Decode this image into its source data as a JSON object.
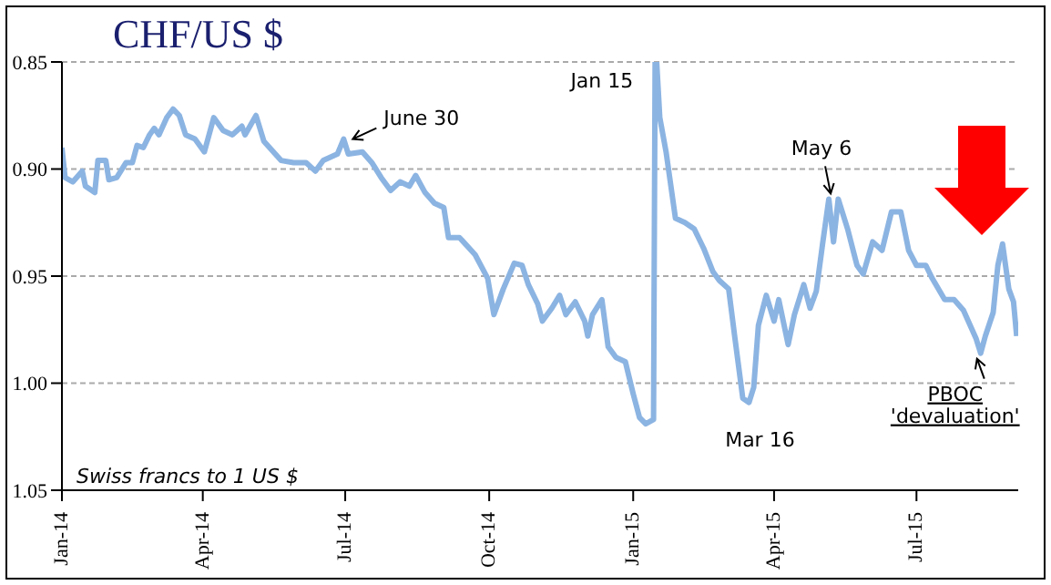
{
  "chart_data": {
    "type": "line",
    "title": "CHF/US $",
    "annotations": [
      "Swiss francs to 1 US $",
      {
        "text": "June 30",
        "x": "2014-06-30",
        "y": 0.886
      },
      {
        "text": "Jan 15",
        "x": "2015-01-15",
        "y": 0.85
      },
      {
        "text": "May 6",
        "x": "2015-05-06",
        "y": 0.914
      },
      {
        "text": "Mar 16",
        "x": "2015-03-16",
        "y": 1.009
      },
      {
        "text": "PBOC 'devaluation'",
        "x": "2015-08-11",
        "y": 0.986
      }
    ],
    "x": [
      "2014-01-01",
      "2014-01-03",
      "2014-01-08",
      "2014-01-14",
      "2014-01-16",
      "2014-01-22",
      "2014-01-24",
      "2014-01-29",
      "2014-01-31",
      "2014-02-05",
      "2014-02-11",
      "2014-02-15",
      "2014-02-18",
      "2014-02-22",
      "2014-02-26",
      "2014-03-01",
      "2014-03-04",
      "2014-03-09",
      "2014-03-13",
      "2014-03-17",
      "2014-03-21",
      "2014-03-27",
      "2014-04-02",
      "2014-04-08",
      "2014-04-14",
      "2014-04-20",
      "2014-04-26",
      "2014-04-28",
      "2014-05-05",
      "2014-05-10",
      "2014-05-21",
      "2014-05-29",
      "2014-06-06",
      "2014-06-12",
      "2014-06-17",
      "2014-06-26",
      "2014-06-30",
      "2014-07-03",
      "2014-07-12",
      "2014-07-18",
      "2014-07-24",
      "2014-07-30",
      "2014-08-05",
      "2014-08-11",
      "2014-08-15",
      "2014-08-21",
      "2014-08-27",
      "2014-09-02",
      "2014-09-05",
      "2014-09-12",
      "2014-09-22",
      "2014-09-30",
      "2014-10-04",
      "2014-10-10",
      "2014-10-17",
      "2014-10-22",
      "2014-10-26",
      "2014-11-01",
      "2014-11-04",
      "2014-11-10",
      "2014-11-15",
      "2014-11-19",
      "2014-11-25",
      "2014-12-01",
      "2014-12-03",
      "2014-12-06",
      "2014-12-12",
      "2014-12-16",
      "2014-12-21",
      "2014-12-27",
      "2015-01-01",
      "2015-01-05",
      "2015-01-09",
      "2015-01-14",
      "2015-01-15",
      "2015-01-16",
      "2015-01-18",
      "2015-01-22",
      "2015-01-28",
      "2015-02-03",
      "2015-02-09",
      "2015-02-15",
      "2015-02-21",
      "2015-02-25",
      "2015-03-03",
      "2015-03-07",
      "2015-03-12",
      "2015-03-16",
      "2015-03-19",
      "2015-03-22",
      "2015-03-27",
      "2015-04-01",
      "2015-04-04",
      "2015-04-10",
      "2015-04-14",
      "2015-04-20",
      "2015-04-24",
      "2015-04-28",
      "2015-05-02",
      "2015-05-06",
      "2015-05-09",
      "2015-05-12",
      "2015-05-18",
      "2015-05-24",
      "2015-05-28",
      "2015-06-03",
      "2015-06-09",
      "2015-06-15",
      "2015-06-21",
      "2015-06-26",
      "2015-07-01",
      "2015-07-07",
      "2015-07-11",
      "2015-07-19",
      "2015-07-25",
      "2015-07-31",
      "2015-08-08",
      "2015-08-11",
      "2015-08-14",
      "2015-08-19",
      "2015-08-22",
      "2015-08-25",
      "2015-08-29",
      "2015-09-01",
      "2015-09-03"
    ],
    "series": [
      {
        "color": "#8cb4e2",
        "values": [
          0.89,
          0.904,
          0.906,
          0.901,
          0.908,
          0.911,
          0.896,
          0.896,
          0.905,
          0.904,
          0.897,
          0.897,
          0.889,
          0.89,
          0.884,
          0.881,
          0.884,
          0.876,
          0.872,
          0.875,
          0.884,
          0.886,
          0.892,
          0.876,
          0.882,
          0.884,
          0.88,
          0.884,
          0.875,
          0.887,
          0.896,
          0.897,
          0.897,
          0.901,
          0.896,
          0.893,
          0.886,
          0.893,
          0.892,
          0.897,
          0.904,
          0.91,
          0.906,
          0.908,
          0.903,
          0.911,
          0.916,
          0.918,
          0.932,
          0.932,
          0.94,
          0.951,
          0.968,
          0.956,
          0.944,
          0.945,
          0.954,
          0.963,
          0.971,
          0.965,
          0.959,
          0.968,
          0.962,
          0.971,
          0.978,
          0.968,
          0.961,
          0.983,
          0.988,
          0.99,
          1.005,
          1.016,
          1.019,
          1.017,
          0.85,
          0.85,
          0.876,
          0.892,
          0.923,
          0.925,
          0.928,
          0.937,
          0.948,
          0.952,
          0.956,
          0.979,
          1.007,
          1.009,
          1.002,
          0.973,
          0.959,
          0.971,
          0.961,
          0.982,
          0.968,
          0.954,
          0.965,
          0.957,
          0.935,
          0.914,
          0.934,
          0.914,
          0.928,
          0.945,
          0.949,
          0.934,
          0.938,
          0.92,
          0.92,
          0.938,
          0.945,
          0.945,
          0.951,
          0.961,
          0.961,
          0.966,
          0.979,
          0.986,
          0.978,
          0.967,
          0.945,
          0.935,
          0.956,
          0.962,
          0.978
        ]
      }
    ],
    "xlim": [
      "2014-01-01",
      "2015-09-04"
    ],
    "xticks": [
      {
        "value": "2014-01-01",
        "label": "Jan-14"
      },
      {
        "value": "2014-04-01",
        "label": "Apr-14"
      },
      {
        "value": "2014-07-01",
        "label": "Jul-14"
      },
      {
        "value": "2014-10-01",
        "label": "Oct-14"
      },
      {
        "value": "2015-01-01",
        "label": "Jan-15"
      },
      {
        "value": "2015-04-01",
        "label": "Apr-15"
      },
      {
        "value": "2015-07-01",
        "label": "Jul-15"
      }
    ],
    "ylim": [
      1.05,
      0.85
    ],
    "yticks": [
      0.85,
      {
        "value": 0.9,
        "label": "0.90"
      },
      0.95,
      {
        "value": 1,
        "label": "1.00"
      },
      1.05
    ],
    "grid": "y",
    "legend": false,
    "marker": "none",
    "line_style": "solid"
  }
}
